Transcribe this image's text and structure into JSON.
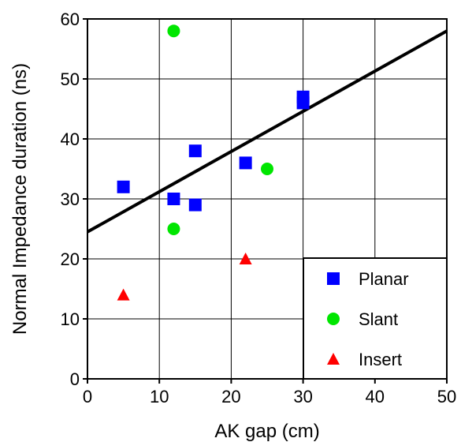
{
  "chart_data": {
    "type": "scatter",
    "xlabel": "AK gap (cm)",
    "ylabel": "Normal Impedance duration (ns)",
    "xlim": [
      0,
      50
    ],
    "ylim": [
      0,
      60
    ],
    "xticks": [
      0,
      10,
      20,
      30,
      40,
      50
    ],
    "yticks": [
      0,
      10,
      20,
      30,
      40,
      50,
      60
    ],
    "grid": true,
    "legend_position": "bottom-right",
    "series": [
      {
        "name": "Planar",
        "marker": "square",
        "color": "#0000ff",
        "points": [
          [
            5,
            32
          ],
          [
            12,
            30
          ],
          [
            15,
            38
          ],
          [
            15,
            29
          ],
          [
            22,
            36
          ],
          [
            30,
            47
          ],
          [
            30,
            46
          ]
        ]
      },
      {
        "name": "Slant",
        "marker": "circle",
        "color": "#00e600",
        "points": [
          [
            12,
            58
          ],
          [
            12,
            25
          ],
          [
            25,
            35
          ]
        ]
      },
      {
        "name": "Insert",
        "marker": "triangle",
        "color": "#ff0000",
        "points": [
          [
            5,
            14
          ],
          [
            22,
            20
          ]
        ]
      }
    ],
    "fit_line": {
      "color": "#000000",
      "points": [
        [
          0,
          24.5
        ],
        [
          50,
          58
        ]
      ]
    }
  }
}
